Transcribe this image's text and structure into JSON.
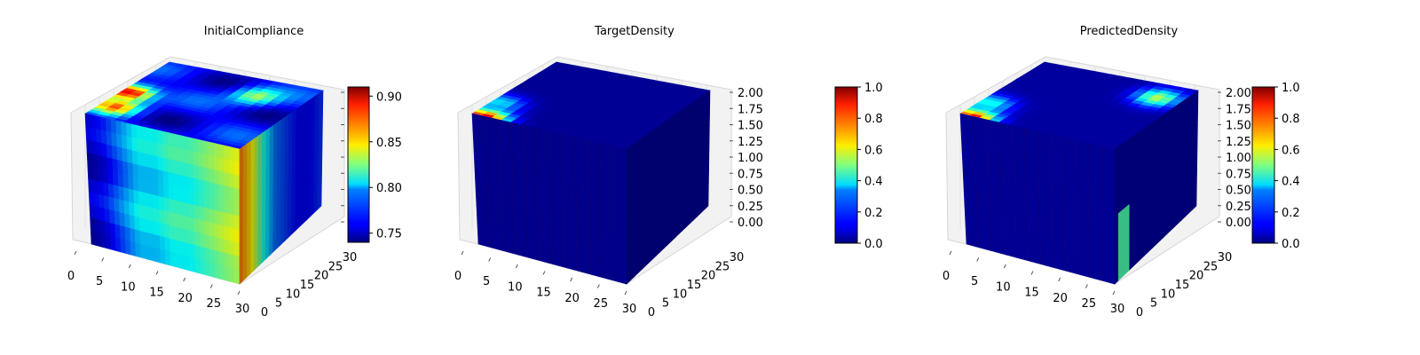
{
  "chart_data": [
    {
      "type": "heatmap",
      "title": "InitialCompliance",
      "x_ticks": [
        "0",
        "5",
        "10",
        "15",
        "20",
        "25",
        "30"
      ],
      "y_ticks": [
        "0",
        "5",
        "10",
        "15",
        "20",
        "25",
        "30"
      ],
      "colorbar": {
        "ticks": [
          "0.75",
          "0.80",
          "0.85",
          "0.90"
        ],
        "tick_values": [
          0.75,
          0.8,
          0.85,
          0.9
        ],
        "range": [
          0.74,
          0.91
        ]
      },
      "colormap": "jet",
      "field": {
        "base_value": 0.76,
        "front_profile": [
          0.75,
          0.76,
          0.78,
          0.8,
          0.8,
          0.81,
          0.81,
          0.82,
          0.83,
          0.84
        ],
        "right_profile": [
          0.87,
          0.85,
          0.81,
          0.78,
          0.77,
          0.76,
          0.76,
          0.77
        ],
        "top_hotspots": [
          {
            "u": 0.45,
            "v": 0.05,
            "value": 0.91
          },
          {
            "u": 0.2,
            "v": 0.1,
            "value": 0.86
          },
          {
            "u": 0.75,
            "v": 0.7,
            "value": 0.83
          }
        ]
      }
    },
    {
      "type": "heatmap",
      "title": "TargetDensity",
      "x_ticks": [
        "0",
        "5",
        "10",
        "15",
        "20",
        "25",
        "30"
      ],
      "y_ticks": [
        "0",
        "5",
        "10",
        "15",
        "20",
        "25",
        "30"
      ],
      "z_ticks": [
        "0.00",
        "0.25",
        "0.50",
        "0.75",
        "1.00",
        "1.25",
        "1.50",
        "1.75",
        "2.00"
      ],
      "colorbar": {
        "ticks": [
          "0.0",
          "0.2",
          "0.4",
          "0.6",
          "0.8",
          "1.0"
        ],
        "tick_values": [
          0.0,
          0.2,
          0.4,
          0.6,
          0.8,
          1.0
        ],
        "range": [
          0.0,
          1.0
        ]
      },
      "colormap": "jet",
      "field": {
        "base_value": 0.02,
        "top_hotspots": [
          {
            "u": 0.0,
            "v": 0.08,
            "value": 0.95
          },
          {
            "u": 0.25,
            "v": 0.05,
            "value": 0.35
          }
        ]
      }
    },
    {
      "type": "heatmap",
      "title": "PredictedDensity",
      "x_ticks": [
        "0",
        "5",
        "10",
        "15",
        "20",
        "25",
        "30"
      ],
      "y_ticks": [
        "0",
        "5",
        "10",
        "15",
        "20",
        "25",
        "30"
      ],
      "z_ticks": [
        "0.00",
        "0.25",
        "0.50",
        "0.75",
        "1.00",
        "1.25",
        "1.50",
        "1.75",
        "2.00"
      ],
      "colorbar": {
        "ticks": [
          "0.0",
          "0.2",
          "0.4",
          "0.6",
          "0.8",
          "1.0"
        ],
        "tick_values": [
          0.0,
          0.2,
          0.4,
          0.6,
          0.8,
          1.0
        ],
        "range": [
          0.0,
          1.0
        ]
      },
      "colormap": "jet",
      "field": {
        "base_value": 0.03,
        "top_hotspots": [
          {
            "u": 0.0,
            "v": 0.08,
            "value": 0.9
          },
          {
            "u": 0.25,
            "v": 0.06,
            "value": 0.4
          },
          {
            "u": 0.8,
            "v": 0.85,
            "value": 0.55
          }
        ],
        "right_stripe_value": 0.45
      }
    }
  ]
}
